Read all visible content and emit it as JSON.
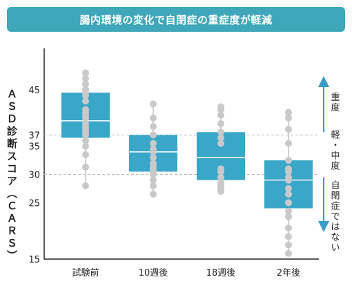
{
  "chart_data": {
    "type": "box",
    "title": "腸内環境の変化で自閉症の重症度が軽減",
    "ylabel": "ＡＳＤ診断スコア（ＣＡＲＳ）",
    "xlabel": "",
    "ylim": [
      15,
      50
    ],
    "yticks": [
      15,
      25,
      30,
      35,
      37,
      45
    ],
    "reference_lines": [
      37,
      30
    ],
    "categories": [
      "試験前",
      "10週後",
      "18週後",
      "2年後"
    ],
    "boxes": [
      {
        "q1": 36.5,
        "median": 39.5,
        "q3": 44.5
      },
      {
        "q1": 30.5,
        "median": 34.0,
        "q3": 37.0
      },
      {
        "q1": 29.0,
        "median": 33.0,
        "q3": 37.5
      },
      {
        "q1": 24.0,
        "median": 29.0,
        "q3": 32.5
      }
    ],
    "points": [
      [
        28,
        31.3,
        33.5,
        35,
        36,
        37,
        37.5,
        38,
        38.5,
        39,
        40,
        40.5,
        41,
        41.5,
        43,
        44,
        44.5,
        45,
        46,
        47,
        48
      ],
      [
        26.5,
        28,
        29,
        30,
        30.5,
        31,
        31.5,
        32,
        33,
        34,
        34.5,
        35.5,
        37,
        38.5,
        40,
        42.5
      ],
      [
        27,
        27.5,
        28,
        28.5,
        29.5,
        30.5,
        31,
        35.5,
        36.5,
        37.5,
        39,
        40.5,
        41.5,
        42
      ],
      [
        16,
        17.5,
        19,
        20.5,
        22.5,
        23.5,
        25,
        26.5,
        27.5,
        29,
        29.5,
        30.5,
        31,
        32.5,
        35.5,
        38,
        40,
        41
      ]
    ],
    "side_labels": [
      {
        "text": "重度"
      },
      {
        "text": "軽・中度"
      },
      {
        "text": "自閉症ではない"
      }
    ],
    "colors": {
      "box_fill": "#3aa6c8",
      "median_line": "#ffffff",
      "point": "#c9c9c9",
      "whisker": "#cfcfcf",
      "arrow": "#3a9cc6",
      "reference_line": "#bbbbbb",
      "title_bar": "#3ea7b9"
    }
  }
}
